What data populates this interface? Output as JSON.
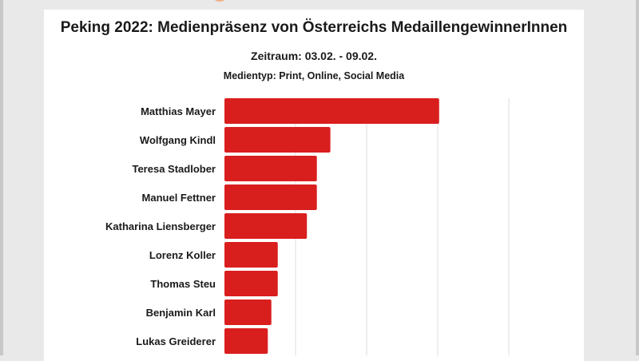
{
  "chart_data": {
    "type": "bar",
    "orientation": "horizontal",
    "title": "Peking 2022: Medienpräsenz von Österreichs MedaillengewinnerInnen",
    "subtitle": "Zeitraum: 03.02. - 09.02.",
    "note": "Medientyp: Print, Online, Social Media",
    "categories": [
      "Matthias Mayer",
      "Wolfgang Kindl",
      "Teresa Stadlober",
      "Manuel Fettner",
      "Katharina Liensberger",
      "Lorenz Koller",
      "Thomas Steu",
      "Benjamin Karl",
      "Lukas Greiderer"
    ],
    "values": [
      302,
      149,
      130,
      130,
      116,
      75,
      75,
      66,
      61
    ],
    "value_unit": "relative (gridline step = 100, axis labels not visible)",
    "gridlines": [
      100,
      200,
      300,
      400
    ],
    "xlim": [
      0,
      400
    ],
    "grid": true,
    "bar_color": "#d91e1e"
  }
}
